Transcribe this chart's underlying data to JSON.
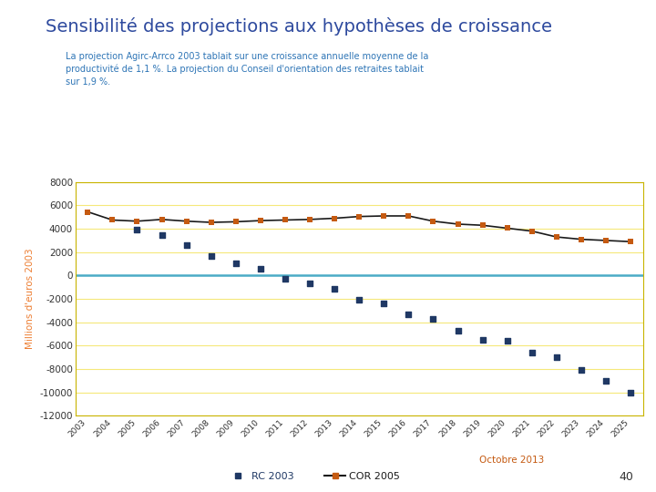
{
  "title": "Sensibilité des projections aux hypothèses de croissance",
  "subtitle": "La projection Agirc-Arrco 2003 tablait sur une croissance annuelle moyenne de la\nproductivité de 1,1 %. La projection du Conseil d'orientation des retraites tablait\nsur 1,9 %.",
  "ylabel": "Millions d'euros 2003",
  "footer": "Octobre 2013",
  "page_number": "40",
  "title_color": "#2E4A9E",
  "subtitle_color": "#2E75B6",
  "ylabel_color": "#ED7D31",
  "footer_color": "#C55A11",
  "page_color": "#333333",
  "background_color": "#FFFFFF",
  "plot_bg_color": "#FFFFFF",
  "ylim": [
    -12000,
    8000
  ],
  "yticks": [
    -12000,
    -10000,
    -8000,
    -6000,
    -4000,
    -2000,
    0,
    2000,
    4000,
    6000,
    8000
  ],
  "years": [
    2003,
    2004,
    2005,
    2006,
    2007,
    2008,
    2009,
    2010,
    2011,
    2012,
    2013,
    2014,
    2015,
    2016,
    2017,
    2018,
    2019,
    2020,
    2021,
    2022,
    2023,
    2024,
    2025
  ],
  "rc2003": [
    null,
    null,
    3900,
    3450,
    2600,
    1650,
    1050,
    600,
    -300,
    -700,
    -1100,
    -2100,
    -2400,
    -3300,
    -3700,
    -4700,
    -5500,
    -5600,
    -6600,
    -7000,
    -8100,
    -9000,
    -10000
  ],
  "cor2005": [
    5450,
    4750,
    4650,
    4800,
    4650,
    4550,
    4600,
    4700,
    4750,
    4800,
    4900,
    5050,
    5100,
    5100,
    4650,
    4400,
    4300,
    4050,
    3800,
    3300,
    3100,
    3000,
    2900
  ],
  "rc2003_color": "#1F3864",
  "cor2005_line_color": "#1A1A1A",
  "cor2005_marker_color": "#C55A11",
  "grid_color_h": "#F5E87A",
  "grid_color_zero": "#4BACC6",
  "legend_rc_label": "RC 2003",
  "legend_cor_label": "COR 2005",
  "legend_rc_color": "#1F3864",
  "legend_cor_color": "#1A1A1A",
  "legend_cor_marker_color": "#C55A11"
}
